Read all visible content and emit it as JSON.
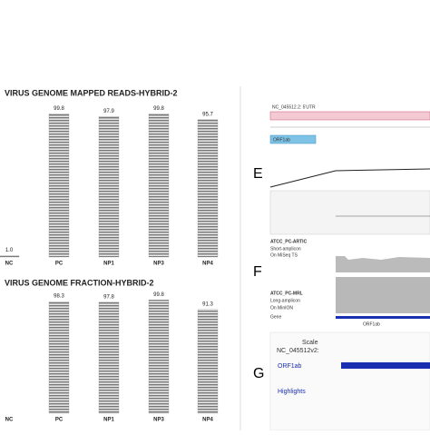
{
  "chart_data": [
    {
      "type": "bar",
      "title": "VIRUS GENOME MAPPED READS-HYBRID-2",
      "categories": [
        "NC",
        "PC",
        "NP1",
        "NP3",
        "NP4"
      ],
      "values": [
        1.0,
        99.8,
        97.9,
        99.8,
        95.7
      ],
      "value_labels": [
        "1.0",
        "99.8",
        "97.9",
        "99.8",
        "95.7"
      ],
      "color": "#8a8a8a",
      "ylim": [
        0,
        100
      ]
    },
    {
      "type": "bar",
      "title": "VIRUS GENOME FRACTION-HYBRID-2",
      "categories": [
        "NC",
        "PC",
        "NP1",
        "NP3",
        "NP4"
      ],
      "values": [
        null,
        98.3,
        97.8,
        99.8,
        91.3
      ],
      "value_labels": [
        null,
        "98.3",
        "97.8",
        "99.8",
        "91.3"
      ],
      "color": "#8a8a8a",
      "ylim": [
        0,
        100
      ]
    }
  ],
  "panels": {
    "labels": [
      "E",
      "F",
      "G"
    ],
    "browser": {
      "top_track": "NC_045512.2: 5'UTR",
      "gene_box": "ORF1ab",
      "track1": "ATCC_PC-ARTIC",
      "track1_sub1": "Short-amplicon",
      "track1_sub2": "On MiSeq TS",
      "track2": "ATCC_PC-MRL",
      "track2_sub1": "Long-amplicon",
      "track2_sub2": "On MinION",
      "gene": "Gene",
      "gene_name": "ORF1ab",
      "scale": "Scale",
      "chrom": "NC_045512v2:",
      "orf": "ORF1ab",
      "highlights": "Highlights"
    }
  }
}
